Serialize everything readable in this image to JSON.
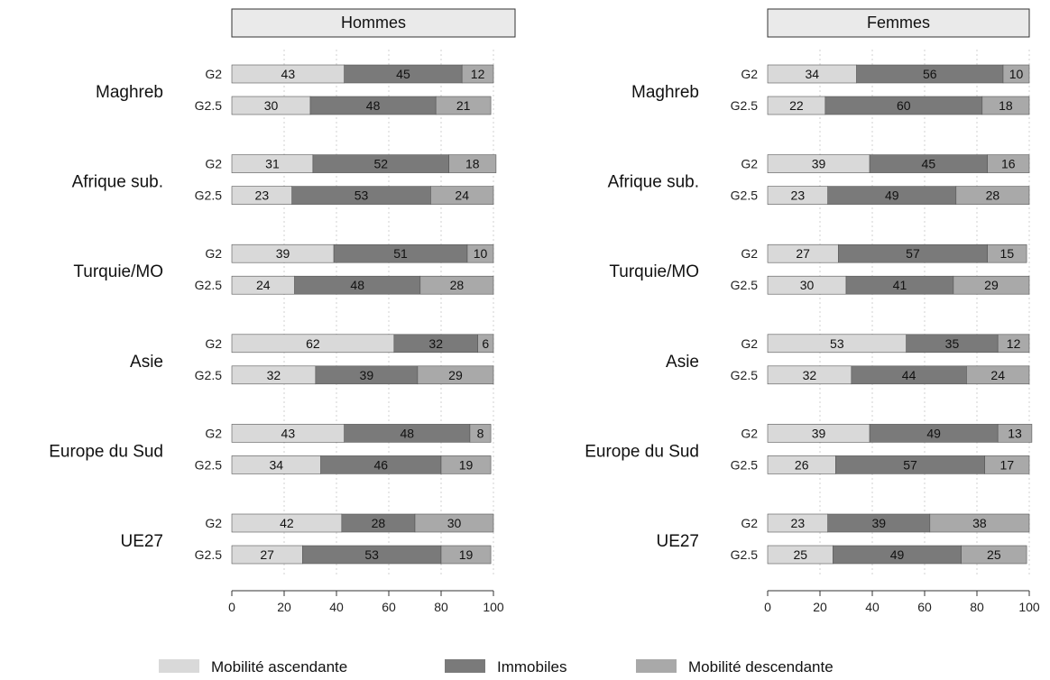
{
  "colors": {
    "up": "#d9d9d9",
    "immobile": "#7a7a7a",
    "down": "#a9a9a9",
    "panel_header": "#eaeaea",
    "grid": "#d0d0d0"
  },
  "legend": {
    "items": [
      {
        "label": "Mobilité ascendante",
        "color_key": "up"
      },
      {
        "label": "Immobiles",
        "color_key": "immobile"
      },
      {
        "label": "Mobilité descendante",
        "color_key": "down"
      }
    ]
  },
  "chart_data": [
    {
      "type": "bar",
      "orientation": "horizontal",
      "stacked": true,
      "title": "Hommes",
      "xlim": [
        0,
        100
      ],
      "xticks": [
        0,
        20,
        40,
        60,
        80,
        100
      ],
      "grid": true,
      "legend_position": "bottom",
      "series_names": [
        "Mobilité ascendante",
        "Immobiles",
        "Mobilité descendante"
      ],
      "groups": [
        {
          "name": "Maghreb",
          "bars": [
            {
              "label": "G2",
              "values": [
                43,
                45,
                12
              ]
            },
            {
              "label": "G2.5",
              "values": [
                30,
                48,
                21
              ]
            }
          ]
        },
        {
          "name": "Afrique sub.",
          "bars": [
            {
              "label": "G2",
              "values": [
                31,
                52,
                18
              ]
            },
            {
              "label": "G2.5",
              "values": [
                23,
                53,
                24
              ]
            }
          ]
        },
        {
          "name": "Turquie/MO",
          "bars": [
            {
              "label": "G2",
              "values": [
                39,
                51,
                10
              ]
            },
            {
              "label": "G2.5",
              "values": [
                24,
                48,
                28
              ]
            }
          ]
        },
        {
          "name": "Asie",
          "bars": [
            {
              "label": "G2",
              "values": [
                62,
                32,
                6
              ]
            },
            {
              "label": "G2.5",
              "values": [
                32,
                39,
                29
              ]
            }
          ]
        },
        {
          "name": "Europe du Sud",
          "bars": [
            {
              "label": "G2",
              "values": [
                43,
                48,
                8
              ]
            },
            {
              "label": "G2.5",
              "values": [
                34,
                46,
                19
              ]
            }
          ]
        },
        {
          "name": "UE27",
          "bars": [
            {
              "label": "G2",
              "values": [
                42,
                28,
                30
              ]
            },
            {
              "label": "G2.5",
              "values": [
                27,
                53,
                19
              ]
            }
          ]
        }
      ]
    },
    {
      "type": "bar",
      "orientation": "horizontal",
      "stacked": true,
      "title": "Femmes",
      "xlim": [
        0,
        100
      ],
      "xticks": [
        0,
        20,
        40,
        60,
        80,
        100
      ],
      "grid": true,
      "legend_position": "bottom",
      "series_names": [
        "Mobilité ascendante",
        "Immobiles",
        "Mobilité descendante"
      ],
      "groups": [
        {
          "name": "Maghreb",
          "bars": [
            {
              "label": "G2",
              "values": [
                34,
                56,
                10
              ]
            },
            {
              "label": "G2.5",
              "values": [
                22,
                60,
                18
              ]
            }
          ]
        },
        {
          "name": "Afrique sub.",
          "bars": [
            {
              "label": "G2",
              "values": [
                39,
                45,
                16
              ]
            },
            {
              "label": "G2.5",
              "values": [
                23,
                49,
                28
              ]
            }
          ]
        },
        {
          "name": "Turquie/MO",
          "bars": [
            {
              "label": "G2",
              "values": [
                27,
                57,
                15
              ]
            },
            {
              "label": "G2.5",
              "values": [
                30,
                41,
                29
              ]
            }
          ]
        },
        {
          "name": "Asie",
          "bars": [
            {
              "label": "G2",
              "values": [
                53,
                35,
                12
              ]
            },
            {
              "label": "G2.5",
              "values": [
                32,
                44,
                24
              ]
            }
          ]
        },
        {
          "name": "Europe du Sud",
          "bars": [
            {
              "label": "G2",
              "values": [
                39,
                49,
                13
              ]
            },
            {
              "label": "G2.5",
              "values": [
                26,
                57,
                17
              ]
            }
          ]
        },
        {
          "name": "UE27",
          "bars": [
            {
              "label": "G2",
              "values": [
                23,
                39,
                38
              ]
            },
            {
              "label": "G2.5",
              "values": [
                25,
                49,
                25
              ]
            }
          ]
        }
      ]
    }
  ]
}
